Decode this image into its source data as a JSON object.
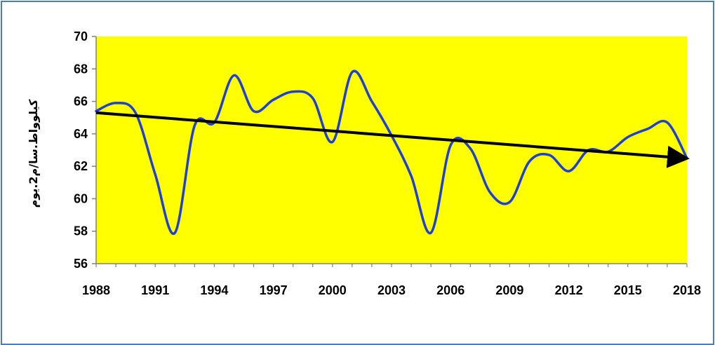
{
  "chart_data": {
    "type": "line",
    "title": "",
    "xlabel": "",
    "ylabel": "كيلوواط.سا/م2.يوم",
    "ylim": [
      56,
      70
    ],
    "xlim": [
      1988,
      2018
    ],
    "yticks": [
      56,
      58,
      60,
      62,
      64,
      66,
      68,
      70
    ],
    "xticks": [
      1988,
      1991,
      1994,
      1997,
      2000,
      2003,
      2006,
      2009,
      2012,
      2015,
      2018
    ],
    "grid": false,
    "legend": "none",
    "plot_background": "#ffff00",
    "series": [
      {
        "color": "#1f3fd6",
        "smooth": true,
        "x": [
          1988,
          1989,
          1990,
          1991,
          1992,
          1993,
          1994,
          1995,
          1996,
          1997,
          1998,
          1999,
          2000,
          2001,
          2002,
          2003,
          2004,
          2005,
          2006,
          2007,
          2008,
          2009,
          2010,
          2011,
          2012,
          2013,
          2014,
          2015,
          2016,
          2017,
          2018
        ],
        "y": [
          65.4,
          65.9,
          65.3,
          61.5,
          57.9,
          64.5,
          64.7,
          67.6,
          65.4,
          66.1,
          66.6,
          66.2,
          63.5,
          67.8,
          66.0,
          63.9,
          61.4,
          57.9,
          63.3,
          63.1,
          60.4,
          59.8,
          62.3,
          62.7,
          61.7,
          63.0,
          62.9,
          63.8,
          64.3,
          64.7,
          62.5
        ]
      }
    ],
    "trendline": {
      "color": "#000000",
      "arrow": true,
      "x": [
        1988,
        2018
      ],
      "y": [
        65.3,
        62.5
      ]
    }
  }
}
